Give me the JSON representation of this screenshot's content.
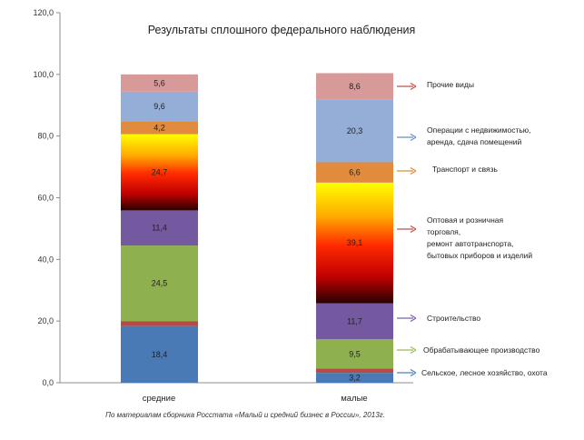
{
  "chart_data": {
    "type": "bar",
    "stacked": true,
    "title": "Результаты сплошного федерального наблюдения",
    "ylim": [
      0,
      120
    ],
    "yticks": [
      "0,0",
      "20,0",
      "40,0",
      "60,0",
      "80,0",
      "100,0",
      "120,0"
    ],
    "grid": false,
    "legend_position": "right",
    "categories": [
      "средние",
      "малые"
    ],
    "series": [
      {
        "name": "Сельское, лесное хозяйство, охота",
        "values": [
          18.4,
          3.2
        ],
        "labels": [
          "18,4",
          "3,2"
        ],
        "color": "#4a7ab5"
      },
      {
        "name": "",
        "values": [
          1.6,
          1.4
        ],
        "labels": [
          "",
          ""
        ],
        "color": "#b84a45"
      },
      {
        "name": "Обрабатывающее производство",
        "values": [
          24.5,
          9.5
        ],
        "labels": [
          "24,5",
          "9,5"
        ],
        "color": "#8eb04e"
      },
      {
        "name": "Строительство",
        "values": [
          11.4,
          11.7
        ],
        "labels": [
          "11,4",
          "11,7"
        ],
        "color": "#7458a0"
      },
      {
        "name": "Оптовая и розничная торговля, ремонт автотранспорта, бытовых приборов и изделий",
        "values": [
          24.7,
          39.1
        ],
        "labels": [
          "24,7",
          "39,1"
        ],
        "color": "gradient"
      },
      {
        "name": "Транспорт и связь",
        "values": [
          4.2,
          6.6
        ],
        "labels": [
          "4,2",
          "6,6"
        ],
        "color": "#e28b3c"
      },
      {
        "name": "Операции с недвижимостью, аренда, сдача помещений",
        "values": [
          9.6,
          20.3
        ],
        "labels": [
          "9,6",
          "20,3"
        ],
        "color": "#94aed8"
      },
      {
        "name": "Прочие виды",
        "values": [
          5.6,
          8.6
        ],
        "labels": [
          "5,6",
          "8,6"
        ],
        "color": "#d89a98"
      }
    ],
    "legend": [
      {
        "lines": [
          "Прочие виды"
        ],
        "arrow_color": "#c0504d"
      },
      {
        "lines": [
          "Операции с недвижимостью,",
          "аренда, сдача помещений"
        ],
        "arrow_color": "#6c8ebf"
      },
      {
        "lines": [
          "Транспорт и связь"
        ],
        "arrow_color": "#e08a3c"
      },
      {
        "lines": [
          "Оптовая и розничная",
          "торговля,",
          "ремонт автотранспорта,",
          "бытовых приборов и изделий"
        ],
        "arrow_color": "#c0504d"
      },
      {
        "lines": [
          "Строительство"
        ],
        "arrow_color": "#7b5ea7"
      },
      {
        "lines": [
          "Обрабатывающее производство"
        ],
        "arrow_color": "#9bbb59"
      },
      {
        "lines": [
          "Сельское, лесное хозяйство, охота"
        ],
        "arrow_color": "#4f81bd"
      }
    ],
    "source": "По материалам сборника Росстата «Малый и средний бизнес в России», 2013г."
  }
}
